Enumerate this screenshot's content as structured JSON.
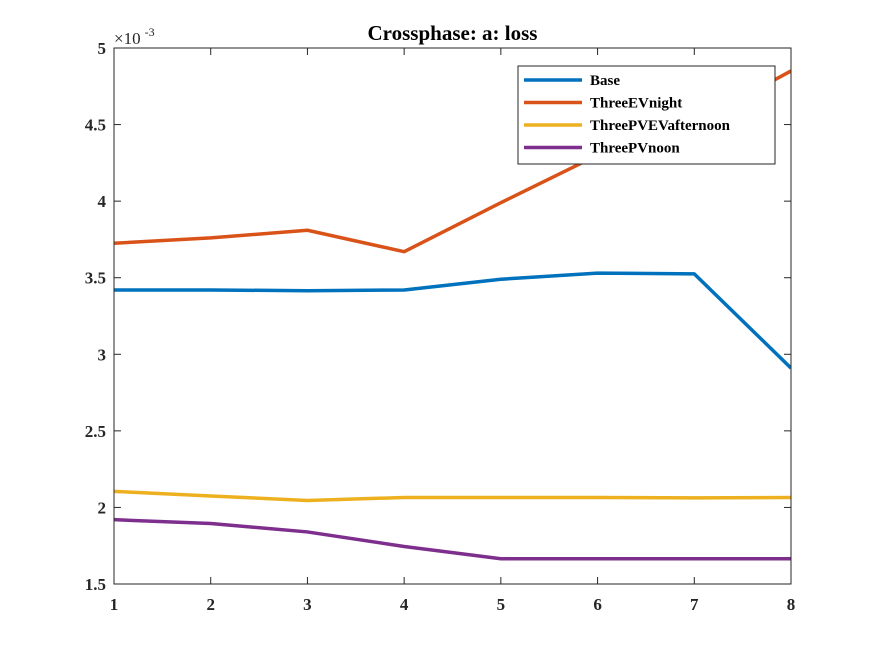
{
  "chart_data": {
    "type": "line",
    "title": "Crossphase: a: loss",
    "xlabel": "",
    "ylabel": "",
    "exponent_label": {
      "base": "×10",
      "power": "-3"
    },
    "x": [
      1,
      2,
      3,
      4,
      5,
      6,
      7,
      8
    ],
    "xlim": [
      1,
      8
    ],
    "ylim": [
      1.5,
      5
    ],
    "xticks": [
      "1",
      "2",
      "3",
      "4",
      "5",
      "6",
      "7",
      "8"
    ],
    "yticks": [
      "1.5",
      "2",
      "2.5",
      "3",
      "3.5",
      "4",
      "4.5",
      "5"
    ],
    "grid": false,
    "legend_position": "top-right",
    "series": [
      {
        "name": "Base",
        "color": "#0072BD",
        "values": [
          3.42,
          3.42,
          3.415,
          3.42,
          3.49,
          3.53,
          3.525,
          2.91
        ]
      },
      {
        "name": "ThreeEVnight",
        "color": "#D95319",
        "values": [
          3.725,
          3.76,
          3.81,
          3.67,
          3.99,
          4.3,
          4.51,
          4.85
        ]
      },
      {
        "name": "ThreePVEVafternoon",
        "color": "#EDB120",
        "values": [
          2.105,
          2.075,
          2.045,
          2.065,
          2.065,
          2.065,
          2.062,
          2.065
        ]
      },
      {
        "name": "ThreePVnoon",
        "color": "#7E2F8E",
        "values": [
          1.92,
          1.895,
          1.84,
          1.745,
          1.665,
          1.665,
          1.665,
          1.665
        ]
      }
    ]
  }
}
